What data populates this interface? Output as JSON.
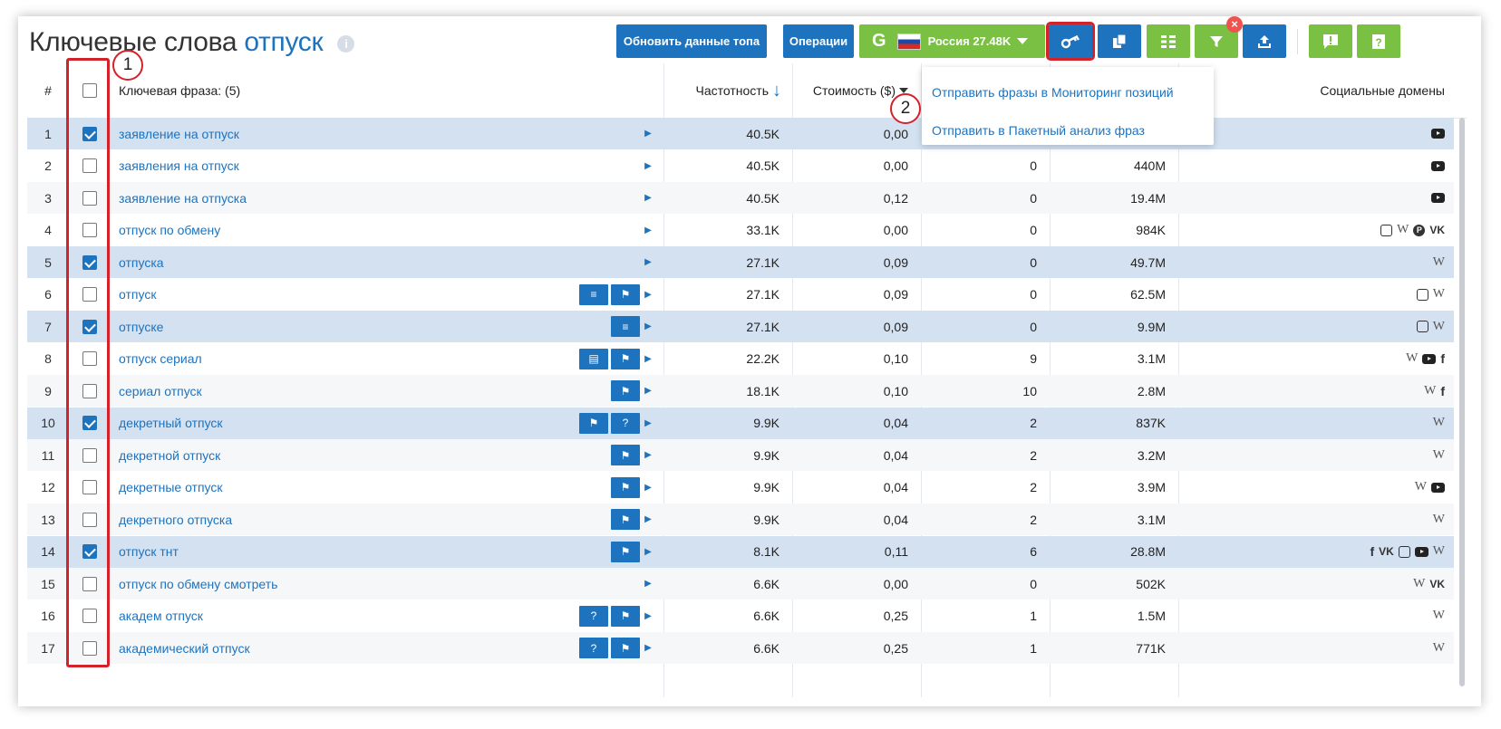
{
  "header": {
    "title": "Ключевые слова",
    "query": "отпуск",
    "info_icon": "info-icon"
  },
  "toolbar": {
    "refresh_label": "Обновить данные топа",
    "operations_label": "Операции",
    "region_label": "Россия 27.48K",
    "engine_letter": "G",
    "icons": [
      "key-icon",
      "copy-icon",
      "columns-icon",
      "filter-icon",
      "export-icon",
      "feedback-icon",
      "help-icon"
    ]
  },
  "dropdown": {
    "items": [
      "Отправить фразы в Мониторинг позиций",
      "Отправить в Пакетный анализ фраз"
    ]
  },
  "annotations": {
    "one": "1",
    "two": "2"
  },
  "table": {
    "headers": {
      "num": "#",
      "phrase": "Ключевая фраза: (5)",
      "freq": "Частотность",
      "cost": "Стоимость ($)",
      "social": "Социальные домены"
    },
    "rows": [
      {
        "n": "1",
        "checked": true,
        "phrase": "заявление на отпуск",
        "icons": [],
        "freq": "40.5K",
        "cost": "0,00",
        "conc": "",
        "res": "",
        "soc": [
          "yt"
        ]
      },
      {
        "n": "2",
        "checked": false,
        "phrase": "заявления на отпуск",
        "icons": [],
        "freq": "40.5K",
        "cost": "0,00",
        "conc": "0",
        "res": "440M",
        "soc": [
          "yt"
        ]
      },
      {
        "n": "3",
        "checked": false,
        "phrase": "заявление на отпуска",
        "icons": [],
        "freq": "40.5K",
        "cost": "0,12",
        "conc": "0",
        "res": "19.4M",
        "soc": [
          "yt"
        ]
      },
      {
        "n": "4",
        "checked": false,
        "phrase": "отпуск по обмену",
        "icons": [],
        "freq": "33.1K",
        "cost": "0,00",
        "conc": "0",
        "res": "984K",
        "soc": [
          "ig",
          "w",
          "pin",
          "vk"
        ]
      },
      {
        "n": "5",
        "checked": true,
        "phrase": "отпуска",
        "icons": [],
        "freq": "27.1K",
        "cost": "0,09",
        "conc": "0",
        "res": "49.7M",
        "soc": [
          "w"
        ]
      },
      {
        "n": "6",
        "checked": false,
        "phrase": "отпуск",
        "icons": [
          "list",
          "flag"
        ],
        "freq": "27.1K",
        "cost": "0,09",
        "conc": "0",
        "res": "62.5M",
        "soc": [
          "ig",
          "w"
        ]
      },
      {
        "n": "7",
        "checked": true,
        "phrase": "отпуске",
        "icons": [
          "list"
        ],
        "freq": "27.1K",
        "cost": "0,09",
        "conc": "0",
        "res": "9.9M",
        "soc": [
          "ig",
          "w"
        ]
      },
      {
        "n": "8",
        "checked": false,
        "phrase": "отпуск сериал",
        "icons": [
          "doc",
          "flag"
        ],
        "freq": "22.2K",
        "cost": "0,10",
        "conc": "9",
        "res": "3.1M",
        "soc": [
          "w",
          "yt",
          "fb"
        ]
      },
      {
        "n": "9",
        "checked": false,
        "phrase": "сериал отпуск",
        "icons": [
          "flag"
        ],
        "freq": "18.1K",
        "cost": "0,10",
        "conc": "10",
        "res": "2.8M",
        "soc": [
          "w",
          "fb"
        ]
      },
      {
        "n": "10",
        "checked": true,
        "phrase": "декретный отпуск",
        "icons": [
          "flag",
          "q"
        ],
        "freq": "9.9K",
        "cost": "0,04",
        "conc": "2",
        "res": "837K",
        "soc": [
          "w"
        ]
      },
      {
        "n": "11",
        "checked": false,
        "phrase": "декретной отпуск",
        "icons": [
          "flag"
        ],
        "freq": "9.9K",
        "cost": "0,04",
        "conc": "2",
        "res": "3.2M",
        "soc": [
          "w"
        ]
      },
      {
        "n": "12",
        "checked": false,
        "phrase": "декретные отпуск",
        "icons": [
          "flag"
        ],
        "freq": "9.9K",
        "cost": "0,04",
        "conc": "2",
        "res": "3.9M",
        "soc": [
          "w",
          "yt"
        ]
      },
      {
        "n": "13",
        "checked": false,
        "phrase": "декретного отпуска",
        "icons": [
          "flag"
        ],
        "freq": "9.9K",
        "cost": "0,04",
        "conc": "2",
        "res": "3.1M",
        "soc": [
          "w"
        ]
      },
      {
        "n": "14",
        "checked": true,
        "phrase": "отпуск тнт",
        "icons": [
          "flag"
        ],
        "freq": "8.1K",
        "cost": "0,11",
        "conc": "6",
        "res": "28.8M",
        "soc": [
          "fb",
          "vk",
          "ig",
          "yt",
          "w"
        ]
      },
      {
        "n": "15",
        "checked": false,
        "phrase": "отпуск по обмену смотреть",
        "icons": [],
        "freq": "6.6K",
        "cost": "0,00",
        "conc": "0",
        "res": "502K",
        "soc": [
          "w",
          "vk"
        ]
      },
      {
        "n": "16",
        "checked": false,
        "phrase": "академ отпуск",
        "icons": [
          "q",
          "flag"
        ],
        "freq": "6.6K",
        "cost": "0,25",
        "conc": "1",
        "res": "1.5M",
        "soc": [
          "w"
        ]
      },
      {
        "n": "17",
        "checked": false,
        "phrase": "академический отпуск",
        "icons": [
          "q",
          "flag"
        ],
        "freq": "6.6K",
        "cost": "0,25",
        "conc": "1",
        "res": "771K",
        "soc": [
          "w"
        ]
      }
    ]
  },
  "colors": {
    "accent": "#1e73be",
    "green": "#79c043",
    "annotation": "#d3222a",
    "selected_row": "#d3e1f1"
  }
}
